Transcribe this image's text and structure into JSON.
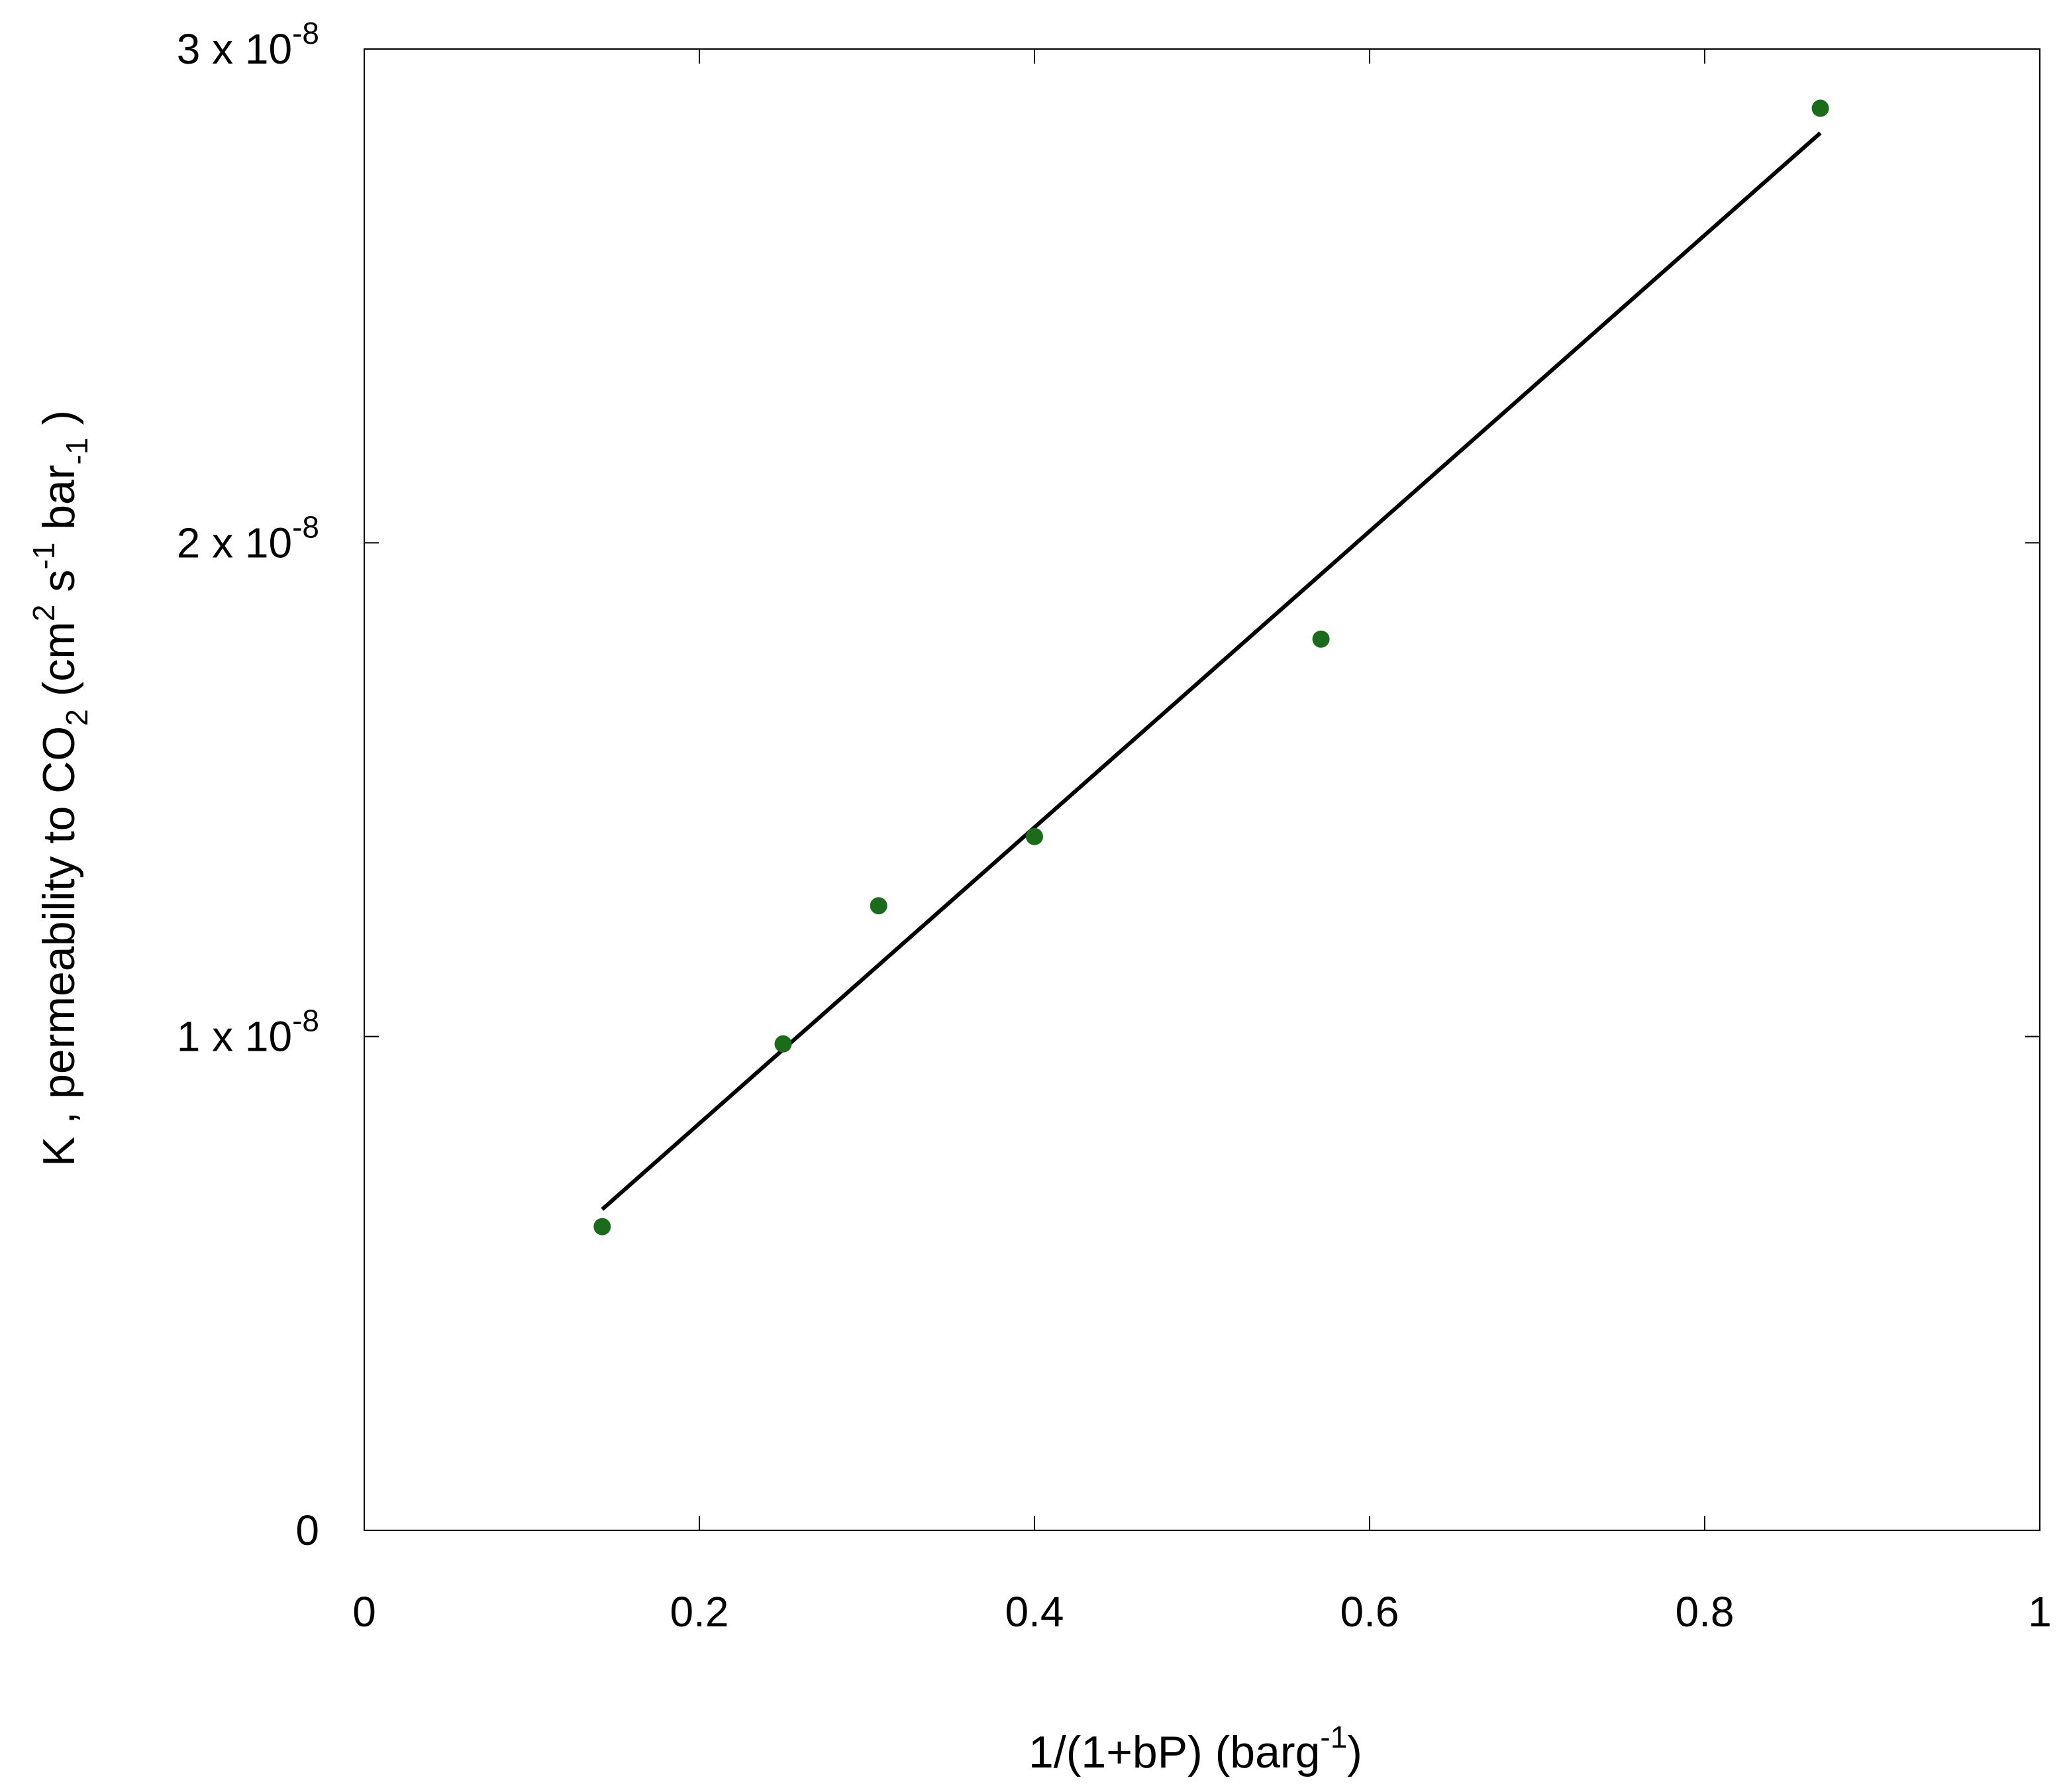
{
  "chart_data": {
    "type": "scatter",
    "xlabel": {
      "main": "1/(1+bP)  (barg",
      "sup": "-1",
      "close": ")"
    },
    "ylabel": {
      "part1": "K , permeability to CO",
      "sub_co2": "2",
      "part2": " (cm",
      "sup_cm": "2",
      "part3": " s",
      "sup_s": "-1",
      "part4": " bar",
      "sub_bar": "-1",
      "part5": " )"
    },
    "xlim": [
      0,
      1
    ],
    "ylim": [
      0,
      3e-08
    ],
    "x_ticks": [
      {
        "value": 0,
        "label": "0"
      },
      {
        "value": 0.2,
        "label": "0.2"
      },
      {
        "value": 0.4,
        "label": "0.4"
      },
      {
        "value": 0.6,
        "label": "0.6"
      },
      {
        "value": 0.8,
        "label": "0.8"
      },
      {
        "value": 1,
        "label": "1"
      }
    ],
    "y_ticks": [
      {
        "value": 0,
        "label": "0",
        "exp": ""
      },
      {
        "value": 1e-08,
        "label": "1 x 10",
        "exp": "-8"
      },
      {
        "value": 2e-08,
        "label": "2 x 10",
        "exp": "-8"
      },
      {
        "value": 3e-08,
        "label": "3 x 10",
        "exp": "-8"
      }
    ],
    "grid": false,
    "series": [
      {
        "kind": "points",
        "color": "#1a6b1a",
        "x": [
          0.142,
          0.25,
          0.307,
          0.4,
          0.571,
          0.869
        ],
        "y": [
          6.15e-09,
          9.85e-09,
          1.265e-08,
          1.405e-08,
          1.805e-08,
          2.88e-08
        ]
      },
      {
        "kind": "fit-line",
        "color": "#000000",
        "x": [
          0.142,
          0.869
        ],
        "y": [
          6.5e-09,
          2.83e-08
        ]
      }
    ]
  }
}
